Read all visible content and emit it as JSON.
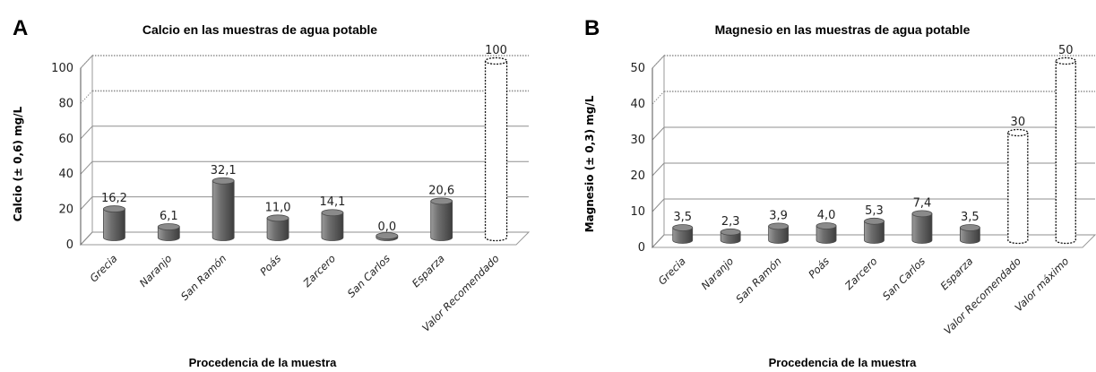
{
  "chart_data": [
    {
      "panel": "A",
      "type": "bar",
      "title": "Calcio en las muestras de agua potable",
      "xlabel": "Procedencia de la muestra",
      "ylabel": "Calcio  (± 0,6) mg/L",
      "ylim": [
        0,
        100
      ],
      "yticks": [
        "0",
        "20",
        "40",
        "60",
        "80",
        "100"
      ],
      "grid": true,
      "legend": "none",
      "categories": [
        "Grecia",
        "Naranjo",
        "San Ramón",
        "Poás",
        "Zarcero",
        "San Carlos",
        "Esparza",
        "Valor Recomendado"
      ],
      "values": [
        16.2,
        6.1,
        32.1,
        11.0,
        14.1,
        0.0,
        20.6,
        100
      ],
      "labels": [
        "16,2",
        "6,1",
        "32,1",
        "11,0",
        "14,1",
        "0,0",
        "20,6",
        "100"
      ],
      "reference_categories": [
        "Valor Recomendado"
      ],
      "colors": {
        "bar": "#707070",
        "reference_outline": "#000000"
      }
    },
    {
      "panel": "B",
      "type": "bar",
      "title": "Magnesio en las muestras de agua potable",
      "xlabel": "Procedencia de la muestra",
      "ylabel": "Magnesio  (± 0,3) mg/L",
      "ylim": [
        0,
        50
      ],
      "yticks": [
        "0",
        "10",
        "20",
        "30",
        "40",
        "50"
      ],
      "grid": true,
      "legend": "none",
      "categories": [
        "Grecia",
        "Naranjo",
        "San Ramón",
        "Poás",
        "Zarcero",
        "San Carlos",
        "Esparza",
        "Valor Recomendado",
        "Valor máximo"
      ],
      "values": [
        3.5,
        2.3,
        3.9,
        4.0,
        5.3,
        7.4,
        3.5,
        30,
        50
      ],
      "labels": [
        "3,5",
        "2,3",
        "3,9",
        "4,0",
        "5,3",
        "7,4",
        "3,5",
        "30",
        "50"
      ],
      "reference_categories": [
        "Valor Recomendado",
        "Valor máximo"
      ],
      "colors": {
        "bar": "#707070",
        "reference_outline": "#000000"
      }
    }
  ]
}
